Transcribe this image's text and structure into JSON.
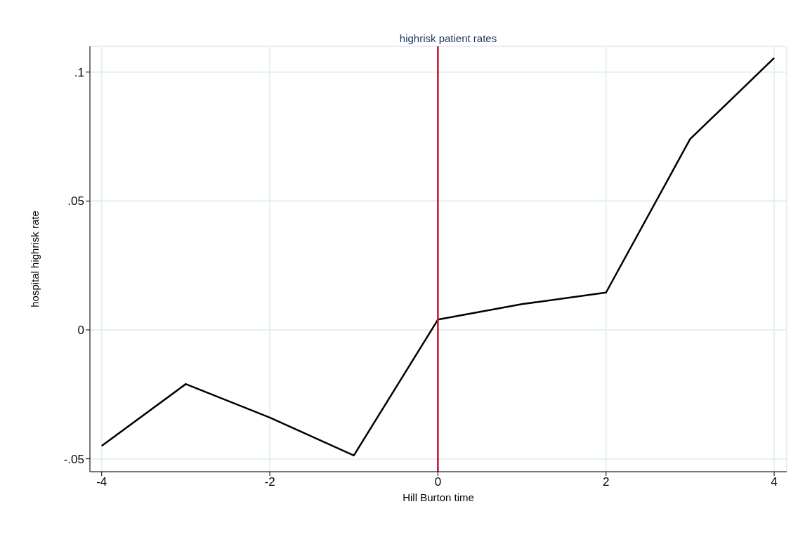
{
  "chart_data": {
    "type": "line",
    "title": "highrisk patient rates",
    "xlabel": "Hill Burton time",
    "ylabel": "hospital highrisk rate",
    "x": [
      -4,
      -3,
      -2,
      -1,
      0,
      1,
      2,
      3,
      4
    ],
    "series": [
      {
        "color": "#000000",
        "values": [
          -0.045,
          -0.021,
          -0.034,
          -0.0487,
          0.004,
          0.01,
          0.0145,
          0.074,
          0.1055
        ]
      }
    ],
    "xlim": [
      -4.14,
      4.15
    ],
    "xticks": [
      -4,
      -2,
      0,
      2,
      4
    ],
    "ylim": [
      -0.055,
      0.11
    ],
    "yticks": [
      {
        "value": -0.05,
        "label": "-.05"
      },
      0,
      {
        "value": 0.05,
        "label": ".05"
      },
      {
        "value": 0.1,
        "label": ".1"
      }
    ],
    "ref_lines": [
      {
        "axis": "x",
        "value": 0,
        "color": "#c8102e"
      }
    ],
    "grid": true,
    "legend": false,
    "marker": "none",
    "line_style": "solid"
  }
}
